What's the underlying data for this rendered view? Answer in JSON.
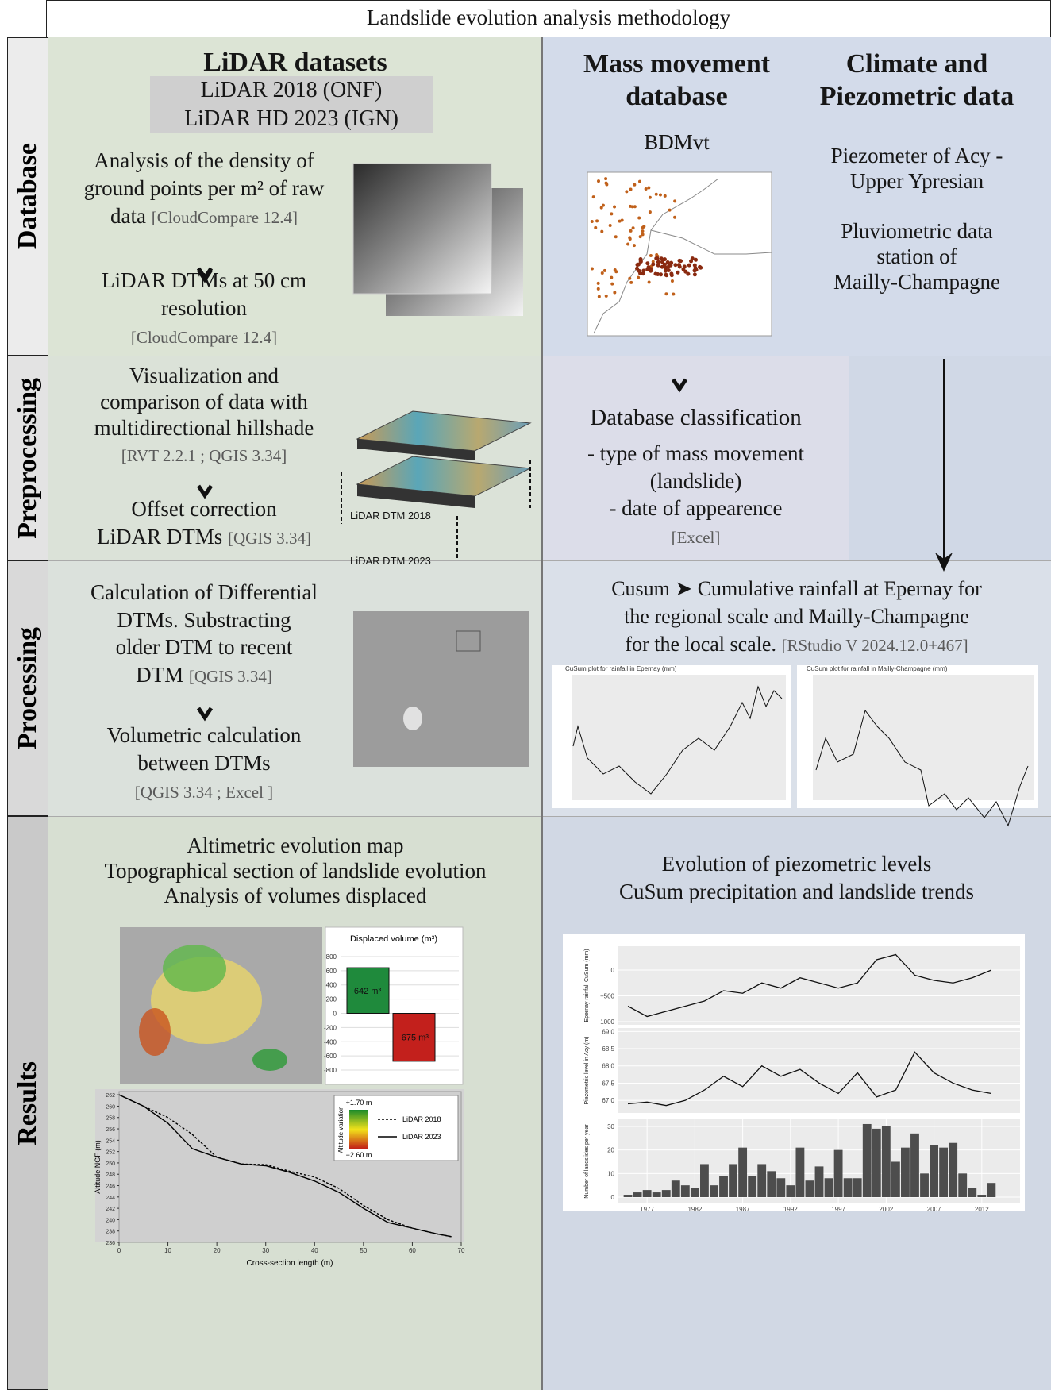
{
  "title": "Landslide evolution analysis methodology",
  "rows": [
    "Database",
    "Preprocessing",
    "Processing",
    "Results"
  ],
  "database": {
    "lidar": {
      "heading": "LiDAR datasets",
      "datasets": [
        "LiDAR 2018 (ONF)",
        "LiDAR HD 2023 (IGN)"
      ],
      "steps": [
        {
          "lines": [
            "Analysis of the density of",
            "ground points per m² of raw",
            "data"
          ],
          "tool": "[CloudCompare 12.4]"
        },
        {
          "lines": [
            "LiDAR DTMs at 50 cm",
            "resolution"
          ],
          "tool": "[CloudCompare 12.4]"
        }
      ]
    },
    "mass_movement": {
      "heading": [
        "Mass movement",
        "database"
      ],
      "source": "BDMvt"
    },
    "climate": {
      "heading": [
        "Climate and",
        "Piezometric data"
      ],
      "piezometer": [
        "Piezometer of Acy -",
        "Upper Ypresian"
      ],
      "pluviometric": [
        "Pluviometric data",
        "station of",
        "Mailly-Champagne"
      ]
    }
  },
  "preprocessing": {
    "lidar": {
      "steps": [
        {
          "lines": [
            "Visualization and",
            "comparison of data with",
            "multidirectional hillshade"
          ],
          "tool": "[RVT 2.2.1 ; QGIS 3.34]"
        },
        {
          "lines": [
            "Offset correction",
            "LiDAR DTMs"
          ],
          "tool": "[QGIS 3.34]"
        }
      ],
      "layers": [
        "LiDAR DTM 2018",
        "LiDAR DTM 2023"
      ]
    },
    "classification": {
      "heading": "Database classification",
      "items": [
        "- type of mass movement",
        "(landslide)",
        "- date of appearence"
      ],
      "tool": "[Excel]"
    }
  },
  "processing": {
    "lidar": {
      "steps": [
        {
          "lines": [
            "Calculation of Differential",
            "DTMs. Substracting",
            "older DTM to recent",
            "DTM"
          ],
          "tool": "[QGIS 3.34]"
        },
        {
          "lines": [
            "Volumetric calculation",
            "between DTMs"
          ],
          "tool": "[QGIS 3.34 ; Excel ]"
        }
      ]
    },
    "cusum": {
      "lines": [
        "Cusum ➤ Cumulative rainfall at Epernay for",
        "the regional scale and Mailly-Champagne",
        "for the local scale."
      ],
      "tool": "[RStudio V 2024.12.0+467]",
      "plots": [
        "CuSum plot for rainfall in Epernay (mm)",
        "CuSum plot for rainfall in Mailly-Champagne (mm)"
      ]
    }
  },
  "results": {
    "lidar": {
      "lines": [
        "Altimetric evolution map",
        "Topographical section of landslide evolution",
        "Analysis of volumes displaced"
      ]
    },
    "trends": {
      "lines": [
        "Evolution of piezometric levels",
        "CuSum precipitation and landslide trends"
      ]
    }
  },
  "chart_data": [
    {
      "type": "bar",
      "title": "Displaced volume (m³)",
      "values": [
        642,
        -675
      ],
      "value_labels": [
        "642 m³",
        "-675 m³"
      ],
      "colors": [
        "#1f8a3c",
        "#c3201c"
      ],
      "ylim": [
        -900,
        900
      ],
      "yticks": [
        800,
        600,
        400,
        200,
        0,
        -200,
        -400,
        -600,
        -800
      ]
    },
    {
      "type": "line",
      "x_label": "Cross-section length (m)",
      "y_label": "Altitude NGF (m)",
      "x": [
        0,
        5,
        10,
        15,
        20,
        25,
        30,
        35,
        40,
        45,
        50,
        55,
        60,
        65,
        68
      ],
      "series": [
        {
          "name": "LiDAR 2018",
          "color": "#000000",
          "style": "dashed",
          "values": [
            262,
            260,
            258,
            255,
            251,
            249.8,
            249.7,
            248.5,
            247.5,
            245.5,
            242.5,
            240,
            238.5,
            237.5,
            237
          ]
        },
        {
          "name": "LiDAR 2023",
          "color": "#000000",
          "style": "solid",
          "values": [
            262,
            260,
            257,
            252.5,
            251,
            249.8,
            249.5,
            248.3,
            246.8,
            244.8,
            242,
            239.5,
            238.5,
            237.5,
            237
          ]
        }
      ],
      "scale_title": "Altitude variation",
      "scale_labels": [
        "+1.70 m",
        "−2.60 m"
      ],
      "xlim": [
        0,
        70
      ],
      "xticks": [
        0,
        10,
        20,
        30,
        40,
        50,
        60,
        70
      ],
      "ylim": [
        236,
        263
      ],
      "yticks": [
        236,
        238,
        240,
        242,
        244,
        246,
        248,
        250,
        252,
        254,
        256,
        258,
        260,
        262
      ]
    },
    {
      "type": "line",
      "y_label": "Epernay rainfall CuSum (mm)",
      "x": [
        1975,
        1977,
        1979,
        1981,
        1983,
        1985,
        1987,
        1989,
        1991,
        1993,
        1995,
        1997,
        1999,
        2001,
        2003,
        2005,
        2007,
        2009,
        2011,
        2013
      ],
      "values": [
        -700,
        -900,
        -800,
        -700,
        -600,
        -400,
        -450,
        -250,
        -350,
        -150,
        -250,
        -350,
        -250,
        200,
        300,
        -100,
        -200,
        -250,
        -150,
        0
      ],
      "xlim": [
        1974,
        2016
      ],
      "ylim": [
        -1000,
        400
      ],
      "yticks": [
        0,
        {
          "value": -500,
          "label": "−500"
        },
        {
          "value": -1000,
          "label": "−1000"
        }
      ]
    },
    {
      "type": "line",
      "y_label": "Piezometric level in Acy (m)",
      "x": [
        1975,
        1977,
        1979,
        1981,
        1983,
        1985,
        1987,
        1989,
        1991,
        1993,
        1995,
        1997,
        1999,
        2001,
        2003,
        2005,
        2007,
        2009,
        2011,
        2013
      ],
      "values": [
        66.9,
        66.95,
        66.85,
        67.0,
        67.3,
        67.7,
        67.4,
        68.0,
        67.7,
        67.9,
        67.5,
        67.2,
        67.8,
        67.1,
        67.3,
        68.4,
        67.8,
        67.5,
        67.3,
        67.2
      ],
      "xlim": [
        1974,
        2016
      ],
      "ylim": [
        66.75,
        69.1
      ],
      "yticks": [
        {
          "value": 67,
          "label": "67.0"
        },
        {
          "value": 67.5,
          "label": "67.5"
        },
        {
          "value": 68,
          "label": "68.0"
        },
        {
          "value": 68.5,
          "label": "68.5"
        },
        {
          "value": 69,
          "label": "69.0"
        }
      ]
    },
    {
      "type": "bar",
      "y_label": "Number of landslides per year",
      "color": "#4d4d4d",
      "x": [
        1975,
        1976,
        1977,
        1978,
        1979,
        1980,
        1981,
        1982,
        1983,
        1984,
        1985,
        1986,
        1987,
        1988,
        1989,
        1990,
        1991,
        1992,
        1993,
        1994,
        1995,
        1996,
        1997,
        1998,
        1999,
        2000,
        2001,
        2002,
        2003,
        2004,
        2005,
        2006,
        2007,
        2008,
        2009,
        2010,
        2011,
        2012,
        2013
      ],
      "values": [
        1,
        2,
        3,
        2,
        3,
        7,
        5,
        4,
        14,
        5,
        9,
        14,
        21,
        9,
        14,
        11,
        8,
        5,
        21,
        7,
        13,
        8,
        20,
        8,
        8,
        31,
        29,
        30,
        15,
        21,
        27,
        10,
        22,
        21,
        23,
        10,
        4,
        1,
        6
      ],
      "xlim": [
        1974,
        2016
      ],
      "xticks": [
        1977,
        1982,
        1987,
        1992,
        1997,
        2002,
        2007,
        2012
      ],
      "ylim": [
        0,
        32
      ],
      "yticks": [
        0,
        10,
        20,
        30
      ]
    }
  ]
}
